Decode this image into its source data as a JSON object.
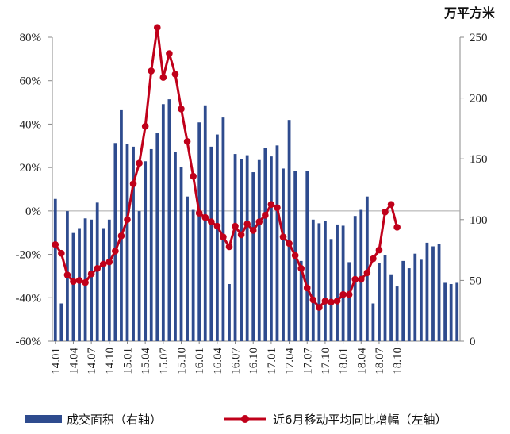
{
  "chart_data": {
    "type": "bar+line",
    "title": "",
    "right_axis_unit": "万平方米",
    "left_axis": {
      "ylim": [
        -0.6,
        0.8
      ],
      "ticks": [
        "80%",
        "60%",
        "40%",
        "20%",
        "0%",
        "-20%",
        "-40%",
        "-60%"
      ]
    },
    "right_axis": {
      "ylim": [
        0,
        250
      ],
      "ticks": [
        "250",
        "200",
        "150",
        "100",
        "50",
        "0"
      ]
    },
    "x_tick_labels": [
      "14.01",
      "14.04",
      "14.07",
      "14.10",
      "15.01",
      "15.04",
      "15.07",
      "15.10",
      "16.01",
      "16.04",
      "16.07",
      "16.10",
      "17.01",
      "17.04",
      "17.07",
      "17.10",
      "18.01",
      "18.04",
      "18.07",
      "18.10"
    ],
    "grid": false,
    "legend_position": "bottom",
    "series": [
      {
        "name": "成交面积（右轴）",
        "kind": "bar",
        "axis": "right",
        "color": "#2e4b8e",
        "values": [
          117,
          31,
          107,
          89,
          93,
          101,
          100,
          114,
          93,
          100,
          163,
          190,
          162,
          160,
          107,
          148,
          158,
          171,
          195,
          199,
          156,
          143,
          119,
          108,
          180,
          194,
          160,
          170,
          184,
          47,
          154,
          150,
          153,
          139,
          149,
          159,
          152,
          161,
          142,
          182,
          140,
          66,
          140,
          100,
          97,
          99,
          84,
          96,
          95,
          65,
          103,
          108,
          119,
          31,
          64,
          71,
          55,
          45,
          66,
          60,
          72,
          67,
          81,
          78,
          80,
          48,
          47,
          48
        ],
        "months_start": "14.01"
      },
      {
        "name": "近6月移动平均同比增幅（左轴）",
        "kind": "line",
        "axis": "left",
        "color": "#c0001a",
        "values": [
          -0.155,
          -0.195,
          -0.295,
          -0.325,
          -0.32,
          -0.33,
          -0.29,
          -0.265,
          -0.245,
          -0.235,
          -0.185,
          -0.115,
          -0.04,
          0.125,
          0.22,
          0.39,
          0.645,
          0.845,
          0.615,
          0.725,
          0.63,
          0.47,
          0.32,
          0.16,
          -0.01,
          -0.03,
          -0.05,
          -0.07,
          -0.12,
          -0.165,
          -0.07,
          -0.11,
          -0.06,
          -0.09,
          -0.05,
          -0.02,
          0.03,
          0.015,
          -0.12,
          -0.15,
          -0.205,
          -0.265,
          -0.355,
          -0.41,
          -0.445,
          -0.415,
          -0.42,
          -0.415,
          -0.385,
          -0.385,
          -0.315,
          -0.315,
          -0.285,
          -0.22,
          -0.18,
          -0.005,
          0.03,
          -0.075
        ]
      }
    ]
  }
}
